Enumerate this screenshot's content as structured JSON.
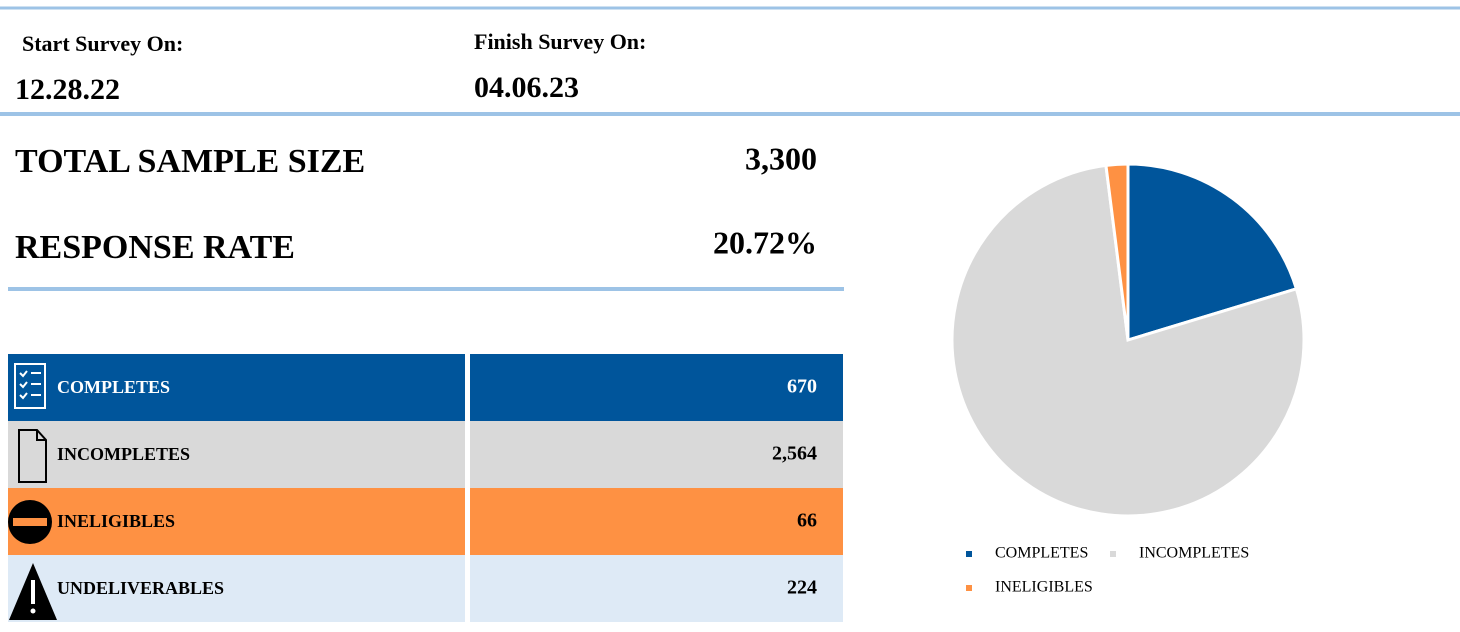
{
  "header": {
    "start_label": "Start Survey On:",
    "start_date": "12.28.22",
    "finish_label": "Finish Survey On:",
    "finish_date": "04.06.23"
  },
  "summary": [
    {
      "label": "TOTAL SAMPLE SIZE",
      "value": "3,300"
    },
    {
      "label": "RESPONSE RATE",
      "value": "20.72%"
    }
  ],
  "table": {
    "rows": [
      [
        "COMPLETES",
        "670"
      ],
      [
        "INCOMPLETES",
        "2,564"
      ],
      [
        "INELIGIBLES",
        "66"
      ],
      [
        "UNDELIVERABLES",
        "224"
      ]
    ]
  },
  "chart_data": {
    "type": "pie",
    "categories": [
      "COMPLETES",
      "INCOMPLETES",
      "INELIGIBLES"
    ],
    "values": [
      670,
      2564,
      66
    ],
    "colors": [
      "#00559b",
      "#d9d9d9",
      "#fe9143"
    ],
    "legend": "bottom"
  }
}
